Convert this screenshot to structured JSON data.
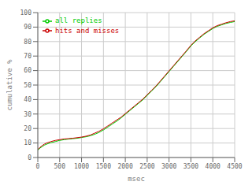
{
  "chart_data": {
    "type": "line",
    "xlabel": "msec",
    "ylabel": "cumulative %",
    "x": [
      0,
      50,
      100,
      150,
      200,
      300,
      400,
      500,
      600,
      700,
      800,
      900,
      1000,
      1100,
      1200,
      1300,
      1400,
      1500,
      1600,
      1700,
      1800,
      1900,
      2000,
      2100,
      2200,
      2300,
      2400,
      2500,
      2600,
      2700,
      2800,
      2900,
      3000,
      3100,
      3200,
      3300,
      3400,
      3500,
      3600,
      3700,
      3800,
      3900,
      4000,
      4100,
      4200,
      4300,
      4400,
      4500
    ],
    "series": [
      {
        "name": "all replies",
        "color": "#00cc00",
        "values": [
          5.0,
          6.5,
          7.5,
          8.5,
          9.2,
          10.2,
          11.0,
          11.8,
          12.3,
          12.7,
          13.0,
          13.3,
          13.8,
          14.3,
          15.0,
          16.0,
          17.3,
          19.0,
          21.0,
          23.0,
          25.0,
          27.2,
          29.8,
          32.3,
          34.8,
          37.3,
          39.8,
          42.8,
          45.8,
          48.8,
          52.3,
          55.8,
          59.3,
          62.8,
          66.3,
          69.8,
          73.3,
          77.0,
          80.0,
          82.5,
          85.0,
          87.0,
          89.0,
          90.5,
          91.5,
          92.5,
          93.2,
          93.8
        ]
      },
      {
        "name": "hits and misses",
        "color": "#cc0000",
        "values": [
          5.5,
          7.0,
          8.2,
          9.2,
          10.0,
          11.0,
          11.8,
          12.3,
          12.8,
          13.0,
          13.3,
          13.7,
          14.1,
          14.7,
          15.5,
          16.8,
          18.1,
          19.8,
          21.8,
          23.8,
          25.8,
          27.8,
          30.3,
          32.8,
          35.3,
          37.8,
          40.3,
          43.3,
          46.3,
          49.3,
          52.8,
          56.3,
          59.8,
          63.3,
          66.8,
          70.3,
          73.8,
          77.5,
          80.5,
          83.0,
          85.5,
          87.5,
          89.5,
          91.0,
          92.0,
          93.0,
          93.8,
          94.3
        ]
      }
    ],
    "xlim": [
      0,
      4500
    ],
    "ylim": [
      0,
      100
    ],
    "xticks": [
      0,
      500,
      1000,
      1500,
      2000,
      2500,
      3000,
      3500,
      4000,
      4500
    ],
    "yticks": [
      0,
      10,
      20,
      30,
      40,
      50,
      60,
      70,
      80,
      90,
      100
    ],
    "grid": true,
    "legend": "upper left"
  }
}
